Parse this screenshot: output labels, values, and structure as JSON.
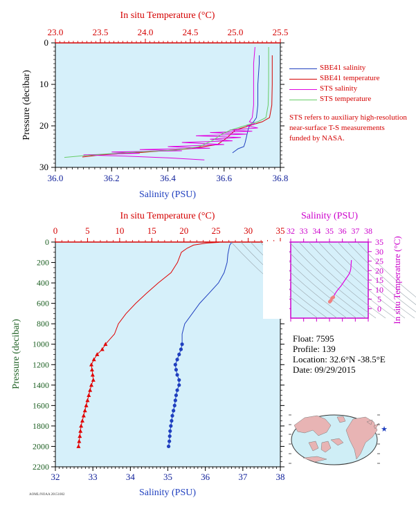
{
  "top_chart": {
    "top_axis_title": "In situ Temperature (°C)",
    "bottom_axis_title": "Salinity (PSU)",
    "left_axis_title": "Pressure (decibar)",
    "top_ticks": [
      "23.0",
      "23.5",
      "24.0",
      "24.5",
      "25.0",
      "25.5"
    ],
    "bottom_ticks": [
      "36.0",
      "36.2",
      "36.4",
      "36.6",
      "36.8"
    ],
    "left_ticks": [
      "0",
      "10",
      "20",
      "30"
    ]
  },
  "legend": {
    "items": [
      {
        "label": "SBE41 salinity",
        "color": "#1f3fbf"
      },
      {
        "label": "SBE41 temperature",
        "color": "#d40000"
      },
      {
        "label": "STS salinity",
        "color": "#e000e0"
      },
      {
        "label": "STS temperature",
        "color": "#66cc66"
      }
    ],
    "note": "STS refers to auxiliary high-resolution near-surface T-S measurements funded by NASA."
  },
  "main_chart": {
    "top_axis_title": "In situ Temperature (°C)",
    "bottom_axis_title": "Salinity (PSU)",
    "left_axis_title": "Pressure (decibar)",
    "top_ticks": [
      "0",
      "5",
      "10",
      "15",
      "20",
      "25",
      "30",
      "35"
    ],
    "bottom_ticks": [
      "32",
      "33",
      "34",
      "35",
      "36",
      "37",
      "38"
    ],
    "left_ticks": [
      "0",
      "200",
      "400",
      "600",
      "800",
      "1000",
      "1200",
      "1400",
      "1600",
      "1800",
      "2000",
      "2200"
    ]
  },
  "ts_chart": {
    "top_axis_title": "Salinity (PSU)",
    "right_axis_title": "In situ Temperature (°C)",
    "top_ticks": [
      "32",
      "33",
      "34",
      "35",
      "36",
      "37",
      "38"
    ],
    "right_ticks": [
      "0",
      "5",
      "10",
      "15",
      "20",
      "25",
      "30",
      "35"
    ]
  },
  "info": {
    "float": "Float:  7595",
    "profile": "Profile:  139",
    "location": "Location:  32.6°N  -38.5°E",
    "date": "Date:  09/29/2015"
  },
  "footer_id": "AOML/NOAA 20151002",
  "chart_data": [
    {
      "type": "line",
      "title": "",
      "ylabel": "Pressure (decibar)",
      "ylim": [
        30,
        0
      ],
      "x_primary": {
        "label": "Salinity (PSU)",
        "lim": [
          36.0,
          36.8
        ]
      },
      "x_secondary": {
        "label": "In situ Temperature (°C)",
        "lim": [
          23.0,
          25.5
        ]
      },
      "series": [
        {
          "name": "SBE41 salinity",
          "axis": "salinity",
          "color": "#1f3fbf",
          "points": [
            [
              36.725,
              3
            ],
            [
              36.725,
              5
            ],
            [
              36.72,
              10
            ],
            [
              36.72,
              15
            ],
            [
              36.715,
              18
            ],
            [
              36.705,
              19
            ],
            [
              36.69,
              20
            ],
            [
              36.685,
              21
            ],
            [
              36.68,
              22.5
            ],
            [
              36.675,
              24
            ],
            [
              36.67,
              25
            ],
            [
              36.65,
              25.5
            ],
            [
              36.64,
              26
            ],
            [
              36.63,
              26.5
            ]
          ]
        },
        {
          "name": "SBE41 temperature",
          "axis": "temperature",
          "color": "#d40000",
          "points": [
            [
              25.41,
              3
            ],
            [
              25.41,
              5
            ],
            [
              25.41,
              10
            ],
            [
              25.405,
              15
            ],
            [
              25.38,
              18
            ],
            [
              25.3,
              19
            ],
            [
              25.15,
              20
            ],
            [
              25.0,
              21
            ],
            [
              24.9,
              23
            ],
            [
              24.8,
              24.5
            ],
            [
              24.5,
              25.5
            ],
            [
              24.2,
              26
            ],
            [
              23.9,
              26.5
            ],
            [
              23.5,
              27
            ],
            [
              23.3,
              27.5
            ]
          ]
        },
        {
          "name": "STS salinity",
          "axis": "salinity",
          "color": "#e000e0",
          "points": [
            [
              36.71,
              1
            ],
            [
              36.705,
              5
            ],
            [
              36.705,
              10
            ],
            [
              36.705,
              15
            ],
            [
              36.7,
              18
            ],
            [
              36.69,
              19
            ],
            [
              36.71,
              19.5
            ],
            [
              36.68,
              20
            ],
            [
              36.72,
              20.5
            ],
            [
              36.62,
              21
            ],
            [
              36.7,
              21.3
            ],
            [
              36.55,
              21.6
            ],
            [
              36.68,
              22
            ],
            [
              36.5,
              22.4
            ],
            [
              36.66,
              22.8
            ],
            [
              36.55,
              23.2
            ],
            [
              36.63,
              23.6
            ],
            [
              36.45,
              24
            ],
            [
              36.6,
              24.5
            ],
            [
              36.4,
              25
            ],
            [
              36.55,
              25.4
            ],
            [
              36.3,
              25.7
            ],
            [
              36.45,
              26
            ],
            [
              36.2,
              26.3
            ],
            [
              36.3,
              26.6
            ],
            [
              36.1,
              27.0
            ],
            [
              36.25,
              27.3
            ],
            [
              36.4,
              27.7
            ],
            [
              36.53,
              28.2
            ]
          ]
        },
        {
          "name": "STS temperature",
          "axis": "temperature",
          "color": "#66cc66",
          "points": [
            [
              25.37,
              1
            ],
            [
              25.37,
              5
            ],
            [
              25.37,
              10
            ],
            [
              25.365,
              15
            ],
            [
              25.34,
              18
            ],
            [
              25.25,
              19
            ],
            [
              25.1,
              20
            ],
            [
              24.95,
              21
            ],
            [
              24.85,
              22
            ],
            [
              24.75,
              23.5
            ],
            [
              24.6,
              25
            ],
            [
              24.35,
              25.8
            ],
            [
              24.0,
              26.2
            ],
            [
              23.6,
              26.7
            ],
            [
              23.3,
              27.2
            ],
            [
              23.1,
              27.6
            ]
          ]
        }
      ]
    },
    {
      "type": "line",
      "title": "",
      "ylabel": "Pressure (decibar)",
      "ylim": [
        2200,
        0
      ],
      "x_primary": {
        "label": "Salinity (PSU)",
        "lim": [
          32,
          38
        ]
      },
      "x_secondary": {
        "label": "In situ Temperature (°C)",
        "lim": [
          0,
          35
        ]
      },
      "series": [
        {
          "name": "salinity",
          "axis": "salinity",
          "color": "#1f3fbf",
          "points": [
            [
              36.7,
              5
            ],
            [
              36.65,
              30
            ],
            [
              36.6,
              120
            ],
            [
              36.58,
              200
            ],
            [
              36.5,
              300
            ],
            [
              36.35,
              400
            ],
            [
              36.1,
              500
            ],
            [
              35.85,
              600
            ],
            [
              35.65,
              700
            ],
            [
              35.45,
              800
            ],
            [
              35.38,
              900
            ],
            [
              35.38,
              1000
            ],
            [
              35.35,
              1050
            ],
            [
              35.3,
              1100
            ],
            [
              35.25,
              1150
            ],
            [
              35.2,
              1200
            ],
            [
              35.22,
              1250
            ],
            [
              35.25,
              1300
            ],
            [
              35.3,
              1350
            ],
            [
              35.3,
              1400
            ],
            [
              35.25,
              1450
            ],
            [
              35.22,
              1500
            ],
            [
              35.2,
              1550
            ],
            [
              35.18,
              1600
            ],
            [
              35.15,
              1650
            ],
            [
              35.12,
              1700
            ],
            [
              35.1,
              1750
            ],
            [
              35.08,
              1800
            ],
            [
              35.06,
              1850
            ],
            [
              35.05,
              1900
            ],
            [
              35.04,
              1950
            ],
            [
              35.02,
              2000
            ]
          ]
        },
        {
          "name": "temperature",
          "axis": "temperature",
          "color": "#e00000",
          "points": [
            [
              25.5,
              3
            ],
            [
              23.5,
              10
            ],
            [
              21.5,
              30
            ],
            [
              20.5,
              60
            ],
            [
              19.6,
              100
            ],
            [
              19.0,
              200
            ],
            [
              18.0,
              300
            ],
            [
              16.0,
              400
            ],
            [
              14.2,
              500
            ],
            [
              12.5,
              600
            ],
            [
              11.0,
              700
            ],
            [
              9.8,
              800
            ],
            [
              9.2,
              900
            ],
            [
              8.5,
              950
            ],
            [
              7.8,
              1000
            ],
            [
              7.3,
              1050
            ],
            [
              6.5,
              1100
            ],
            [
              6.0,
              1150
            ],
            [
              5.6,
              1200
            ],
            [
              5.7,
              1250
            ],
            [
              5.8,
              1300
            ],
            [
              5.9,
              1350
            ],
            [
              5.6,
              1400
            ],
            [
              5.4,
              1450
            ],
            [
              5.2,
              1500
            ],
            [
              5.0,
              1550
            ],
            [
              4.8,
              1600
            ],
            [
              4.6,
              1650
            ],
            [
              4.4,
              1700
            ],
            [
              4.2,
              1750
            ],
            [
              4.0,
              1800
            ],
            [
              3.9,
              1850
            ],
            [
              3.8,
              1900
            ],
            [
              3.7,
              1950
            ],
            [
              3.6,
              2000
            ]
          ]
        }
      ],
      "marker_start_pressure": 1000
    },
    {
      "type": "line",
      "title": "",
      "x_primary": {
        "label": "Salinity (PSU)",
        "lim": [
          32,
          38
        ]
      },
      "y_primary": {
        "label": "In situ Temperature (°C)",
        "lim": [
          -5,
          35
        ]
      },
      "series": [
        {
          "name": "T-S",
          "color": "#e000e0",
          "points": [
            [
              36.7,
              25.5
            ],
            [
              36.65,
              21
            ],
            [
              36.6,
              19.5
            ],
            [
              36.5,
              18
            ],
            [
              36.2,
              15
            ],
            [
              35.9,
              12
            ],
            [
              35.6,
              9.5
            ],
            [
              35.4,
              7.5
            ],
            [
              35.3,
              6
            ],
            [
              35.2,
              5.5
            ],
            [
              35.1,
              4.2
            ],
            [
              35.02,
              3.6
            ]
          ]
        }
      ]
    }
  ]
}
